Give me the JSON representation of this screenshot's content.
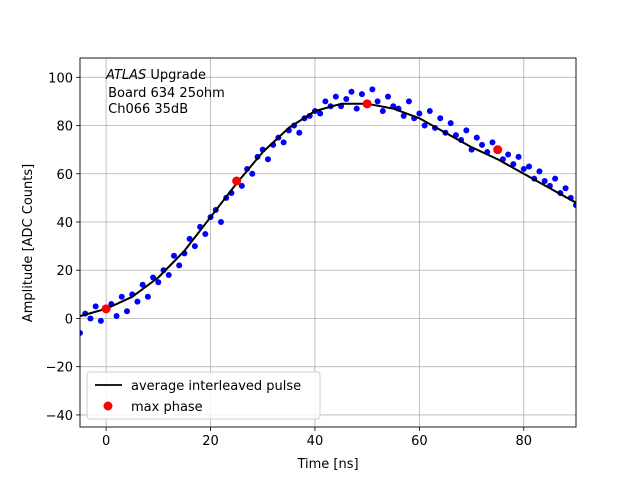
{
  "chart_data": {
    "type": "scatter",
    "title": "",
    "xlabel": "Time [ns]",
    "ylabel": "Amplitude [ADC Counts]",
    "xlim": [
      -5,
      90
    ],
    "ylim": [
      -45,
      108
    ],
    "xticks": [
      0,
      20,
      40,
      60,
      80
    ],
    "yticks": [
      -40,
      -20,
      0,
      20,
      40,
      60,
      80,
      100
    ],
    "xtick_labels": [
      "0",
      "20",
      "40",
      "60",
      "80"
    ],
    "ytick_labels": [
      "−40",
      "−20",
      "0",
      "20",
      "40",
      "60",
      "80",
      "100"
    ],
    "grid": true,
    "annotation": {
      "italic": "ATLAS",
      "rest": " Upgrade",
      "line2": " Board 634 25ohm",
      "line3": " Ch066 35dB"
    },
    "legend": {
      "placement": "lower-left",
      "entries": [
        {
          "label": "average interleaved pulse",
          "style": "line",
          "color": "#000000"
        },
        {
          "label": "max phase",
          "style": "marker",
          "color": "#ff0000"
        }
      ]
    },
    "series": [
      {
        "name": "average interleaved pulse",
        "style": "line",
        "color": "#000000",
        "x": [
          -5,
          0,
          5,
          10,
          15,
          20,
          25,
          30,
          35,
          40,
          45,
          50,
          55,
          60,
          65,
          70,
          75,
          80,
          85,
          90
        ],
        "y": [
          1,
          4,
          9,
          17,
          28,
          42,
          56,
          69,
          79,
          86,
          89,
          89,
          87,
          83,
          77,
          71,
          66,
          60,
          54,
          48
        ]
      },
      {
        "name": "max phase",
        "style": "marker",
        "color": "#ff0000",
        "x": [
          0,
          25,
          50,
          75
        ],
        "y": [
          4,
          57,
          89,
          70
        ]
      },
      {
        "style": "scatter",
        "color": "#0000ff",
        "x": [
          -5,
          -4,
          -3,
          -2,
          -1,
          0,
          1,
          2,
          3,
          4,
          5,
          6,
          7,
          8,
          9,
          10,
          11,
          12,
          13,
          14,
          15,
          16,
          17,
          18,
          19,
          20,
          21,
          22,
          23,
          24,
          25,
          26,
          27,
          28,
          29,
          30,
          31,
          32,
          33,
          34,
          35,
          36,
          37,
          38,
          39,
          40,
          41,
          42,
          43,
          44,
          45,
          46,
          47,
          48,
          49,
          50,
          51,
          52,
          53,
          54,
          55,
          56,
          57,
          58,
          59,
          60,
          61,
          62,
          63,
          64,
          65,
          66,
          67,
          68,
          69,
          70,
          71,
          72,
          73,
          74,
          75,
          76,
          77,
          78,
          79,
          80,
          81,
          82,
          83,
          84,
          85,
          86,
          87,
          88,
          89,
          90
        ],
        "y": [
          -6,
          2,
          0,
          5,
          -1,
          4,
          6,
          1,
          9,
          3,
          10,
          7,
          14,
          9,
          17,
          15,
          20,
          18,
          26,
          22,
          27,
          33,
          30,
          38,
          35,
          42,
          45,
          40,
          50,
          52,
          57,
          55,
          62,
          60,
          67,
          70,
          66,
          72,
          75,
          73,
          78,
          80,
          77,
          83,
          84,
          86,
          85,
          90,
          88,
          92,
          88,
          91,
          94,
          87,
          93,
          89,
          95,
          90,
          86,
          92,
          88,
          87,
          84,
          90,
          83,
          85,
          80,
          86,
          79,
          83,
          77,
          81,
          76,
          74,
          78,
          70,
          75,
          72,
          69,
          73,
          70,
          66,
          68,
          64,
          67,
          62,
          63,
          58,
          61,
          57,
          55,
          58,
          52,
          54,
          50,
          47
        ]
      }
    ]
  }
}
